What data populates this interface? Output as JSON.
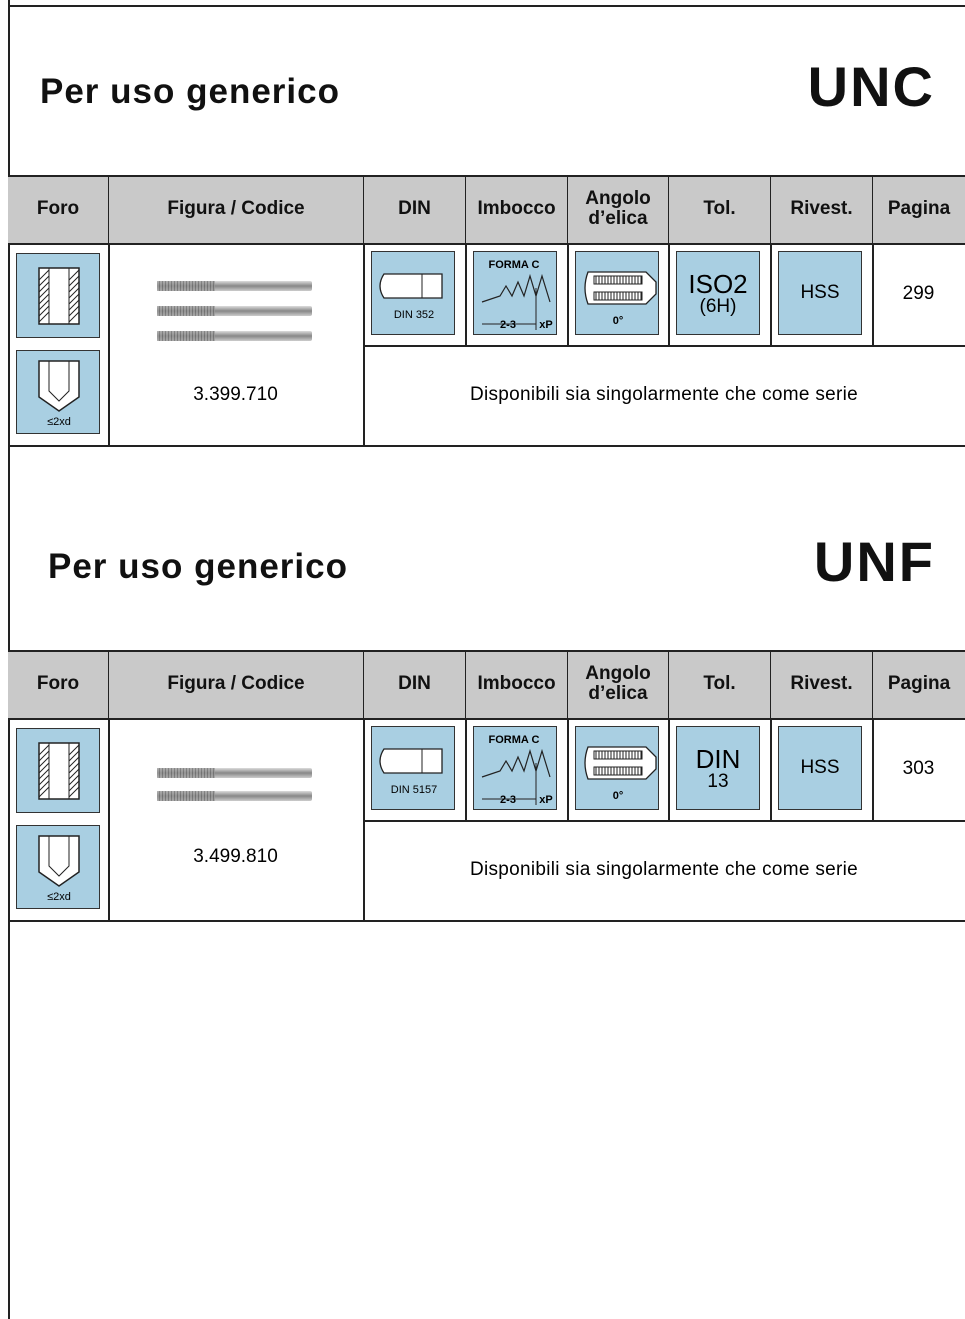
{
  "sections": [
    {
      "title": "Per uso generico",
      "thread": "UNC",
      "header": [
        "Foro",
        "Figura / Codice",
        "DIN",
        "Imbocco",
        "Angolo d’elica",
        "Tol.",
        "Rivest.",
        "Pagina"
      ],
      "foro_label": "≤2xd",
      "code": "3.399.710",
      "din": "DIN 352",
      "imbocco": {
        "label": "FORMA C",
        "range": "2-3",
        "factor": "xP"
      },
      "angle": "0°",
      "tolerance": [
        "ISO2",
        "(6H)"
      ],
      "coating": "HSS",
      "page": "299",
      "note": "Disponibili sia singolarmente che come serie"
    },
    {
      "title": "Per uso generico",
      "thread": "UNF",
      "header": [
        "Foro",
        "Figura / Codice",
        "DIN",
        "Imbocco",
        "Angolo d’elica",
        "Tol.",
        "Rivest.",
        "Pagina"
      ],
      "foro_label": "≤2xd",
      "code": "3.499.810",
      "din": "DIN 5157",
      "imbocco": {
        "label": "FORMA C",
        "range": "2-3",
        "factor": "xP"
      },
      "angle": "0°",
      "tolerance": [
        "DIN",
        "13"
      ],
      "coating": "HSS",
      "page": "303",
      "note": "Disponibili sia singolarmente che come serie"
    }
  ]
}
